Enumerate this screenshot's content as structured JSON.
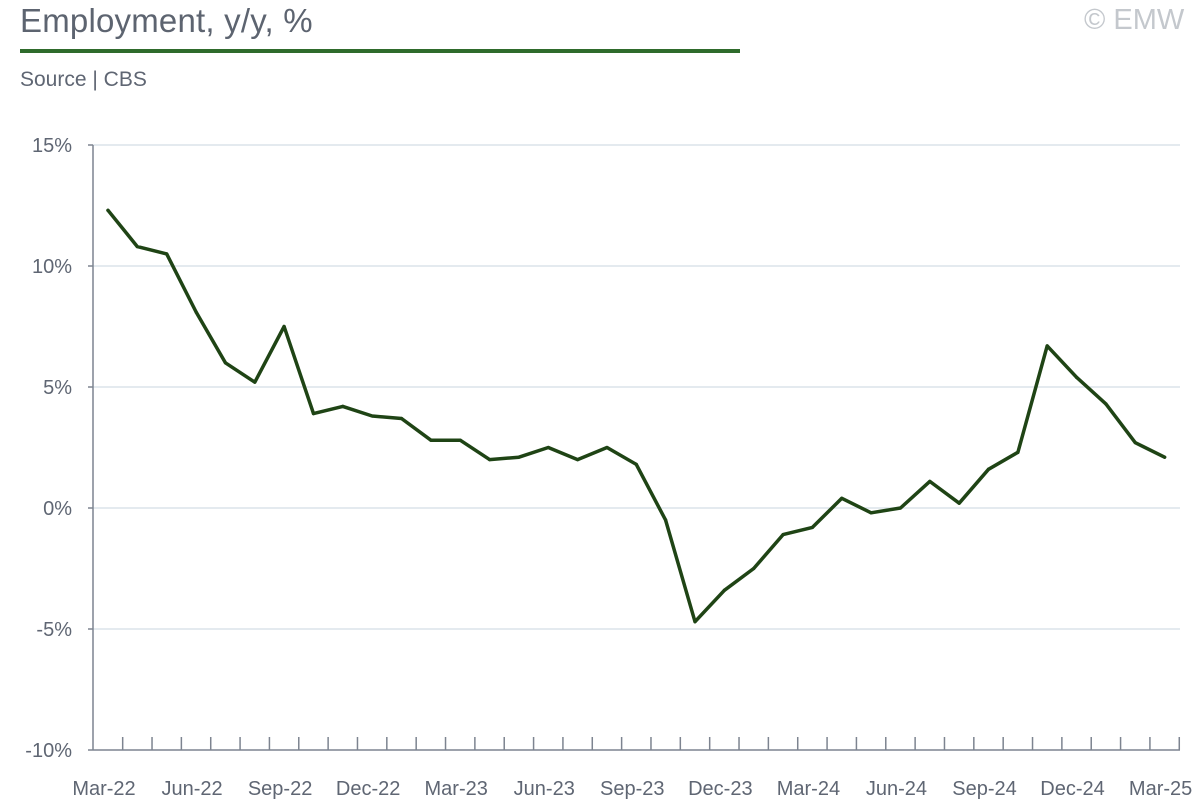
{
  "header": {
    "title": "Employment, y/y, %",
    "source": "Source | CBS",
    "copyright": "© EMW"
  },
  "colors": {
    "line": "#1f4415",
    "title_rule": "#2f6b2c",
    "grid": "#dbe3ea",
    "axis": "#7d8490"
  },
  "chart_data": {
    "type": "line",
    "title": "Employment, y/y, %",
    "xlabel": "",
    "ylabel": "",
    "grid": true,
    "ylim": [
      -10,
      15
    ],
    "y_ticks": [
      15,
      10,
      5,
      0,
      -5,
      -10
    ],
    "y_tick_labels": [
      "15%",
      "10%",
      "5%",
      "0%",
      "-5%",
      "-10%"
    ],
    "x_tick_labels": [
      "Mar-22",
      "Jun-22",
      "Sep-22",
      "Dec-22",
      "Mar-23",
      "Jun-23",
      "Sep-23",
      "Dec-23",
      "Mar-24",
      "Jun-24",
      "Sep-24",
      "Dec-24",
      "Mar-25"
    ],
    "x": [
      "Mar-22",
      "Apr-22",
      "May-22",
      "Jun-22",
      "Jul-22",
      "Aug-22",
      "Sep-22",
      "Oct-22",
      "Nov-22",
      "Dec-22",
      "Jan-23",
      "Feb-23",
      "Mar-23",
      "Apr-23",
      "May-23",
      "Jun-23",
      "Jul-23",
      "Aug-23",
      "Sep-23",
      "Oct-23",
      "Nov-23",
      "Dec-23",
      "Jan-24",
      "Feb-24",
      "Mar-24",
      "Apr-24",
      "May-24",
      "Jun-24",
      "Jul-24",
      "Aug-24",
      "Sep-24",
      "Oct-24",
      "Nov-24",
      "Dec-24",
      "Jan-25",
      "Feb-25",
      "Mar-25"
    ],
    "series": [
      {
        "values": [
          12.3,
          10.8,
          10.5,
          8.1,
          6.0,
          5.2,
          7.5,
          3.9,
          4.2,
          3.8,
          3.7,
          2.8,
          2.8,
          2.0,
          2.1,
          2.5,
          2.0,
          2.5,
          1.8,
          -0.5,
          -4.7,
          -3.4,
          -2.5,
          -1.1,
          -0.8,
          0.4,
          -0.2,
          0.0,
          1.1,
          0.2,
          1.6,
          2.3,
          6.7,
          5.4,
          4.3,
          2.7,
          2.1
        ]
      }
    ]
  }
}
